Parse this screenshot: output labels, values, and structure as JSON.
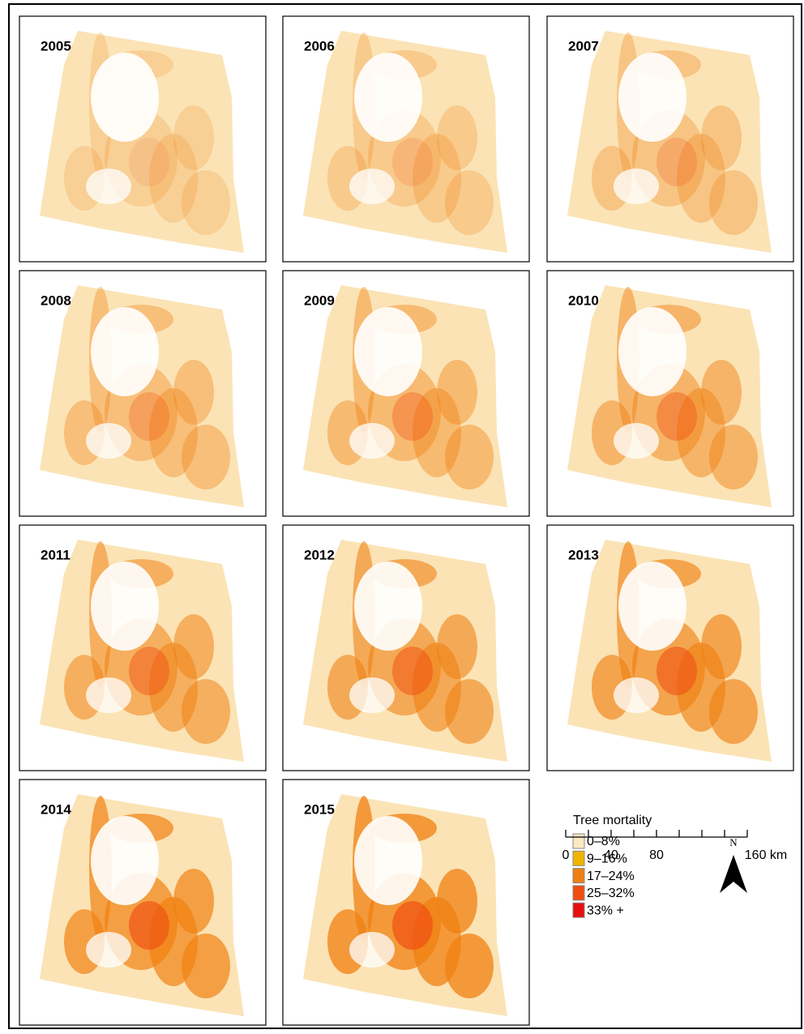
{
  "panels": [
    "2005",
    "2006",
    "2007",
    "2008",
    "2009",
    "2010",
    "2011",
    "2012",
    "2013",
    "2014",
    "2015"
  ],
  "legend": {
    "title": "Tree mortality",
    "items": [
      {
        "label": "0–8%",
        "color": "#fde9c0"
      },
      {
        "label": "9–16%",
        "color": "#f0b400"
      },
      {
        "label": "17–24%",
        "color": "#f08012"
      },
      {
        "label": "25–32%",
        "color": "#f04e10"
      },
      {
        "label": "33% +",
        "color": "#e61010"
      }
    ]
  },
  "north": "N",
  "scale": {
    "labels": [
      "0",
      "40",
      "80",
      "160 km"
    ]
  }
}
